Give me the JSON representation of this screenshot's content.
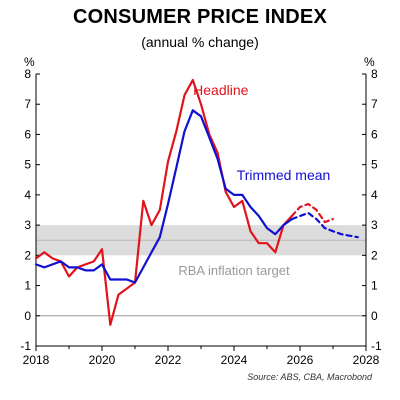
{
  "chart_data": {
    "type": "line",
    "title": "CONSUMER PRICE INDEX",
    "subtitle": "(annual % change)",
    "ylabel_left": "%",
    "ylabel_right": "%",
    "xlim": [
      2018,
      2028
    ],
    "ylim": [
      -1,
      8
    ],
    "xticks": [
      2018,
      2020,
      2022,
      2024,
      2026,
      2028
    ],
    "yticks": [
      -1,
      0,
      1,
      2,
      3,
      4,
      5,
      6,
      7,
      8
    ],
    "target_band": {
      "low": 2,
      "high": 3,
      "label": "RBA inflation target",
      "color": "#dcdcdc"
    },
    "midline": 2.5,
    "zero_line": true,
    "grid": false,
    "source": "Source: ABS, CBA, Macrobond",
    "series": [
      {
        "name": "Headline",
        "color": "#e1141c",
        "style": "solid",
        "x": [
          2018.0,
          2018.25,
          2018.5,
          2018.75,
          2019.0,
          2019.25,
          2019.5,
          2019.75,
          2020.0,
          2020.25,
          2020.5,
          2020.75,
          2021.0,
          2021.25,
          2021.5,
          2021.75,
          2022.0,
          2022.25,
          2022.5,
          2022.75,
          2023.0,
          2023.25,
          2023.5,
          2023.75,
          2024.0,
          2024.25,
          2024.5,
          2024.75,
          2025.0,
          2025.25,
          2025.5,
          2025.75
        ],
        "values": [
          1.9,
          2.1,
          1.9,
          1.8,
          1.3,
          1.6,
          1.7,
          1.8,
          2.2,
          -0.3,
          0.7,
          0.9,
          1.1,
          3.8,
          3.0,
          3.5,
          5.1,
          6.1,
          7.3,
          7.8,
          7.0,
          6.0,
          5.4,
          4.1,
          3.6,
          3.8,
          2.8,
          2.4,
          2.4,
          2.1,
          3.0,
          3.3
        ]
      },
      {
        "name": "Headline forecast",
        "color": "#e1141c",
        "style": "dashed",
        "x": [
          2025.75,
          2026.0,
          2026.25,
          2026.5,
          2026.75,
          2027.0
        ],
        "values": [
          3.3,
          3.6,
          3.7,
          3.5,
          3.1,
          3.2
        ]
      },
      {
        "name": "Trimmed mean",
        "color": "#1010d0",
        "style": "solid",
        "x": [
          2018.0,
          2018.25,
          2018.5,
          2018.75,
          2019.0,
          2019.25,
          2019.5,
          2019.75,
          2020.0,
          2020.25,
          2020.5,
          2020.75,
          2021.0,
          2021.25,
          2021.5,
          2021.75,
          2022.0,
          2022.25,
          2022.5,
          2022.75,
          2023.0,
          2023.25,
          2023.5,
          2023.75,
          2024.0,
          2024.25,
          2024.5,
          2024.75,
          2025.0,
          2025.25,
          2025.5,
          2025.75
        ],
        "values": [
          1.7,
          1.6,
          1.7,
          1.8,
          1.6,
          1.6,
          1.5,
          1.5,
          1.7,
          1.2,
          1.2,
          1.2,
          1.1,
          1.6,
          2.1,
          2.6,
          3.7,
          4.9,
          6.1,
          6.8,
          6.6,
          5.9,
          5.2,
          4.2,
          4.0,
          4.0,
          3.6,
          3.3,
          2.9,
          2.7,
          3.0,
          3.2
        ]
      },
      {
        "name": "Trimmed mean forecast",
        "color": "#1010d0",
        "style": "dashed",
        "x": [
          2025.75,
          2026.0,
          2026.25,
          2026.5,
          2026.75,
          2027.0,
          2027.25,
          2027.5,
          2027.75
        ],
        "values": [
          3.2,
          3.3,
          3.4,
          3.2,
          2.9,
          2.8,
          2.7,
          2.65,
          2.6
        ]
      }
    ],
    "annotations": [
      {
        "text": "Headline",
        "x": 2023.6,
        "y": 7.3,
        "color": "#e1141c"
      },
      {
        "text": "Trimmed mean",
        "x": 2025.5,
        "y": 4.5,
        "color": "#1010d0"
      }
    ]
  }
}
